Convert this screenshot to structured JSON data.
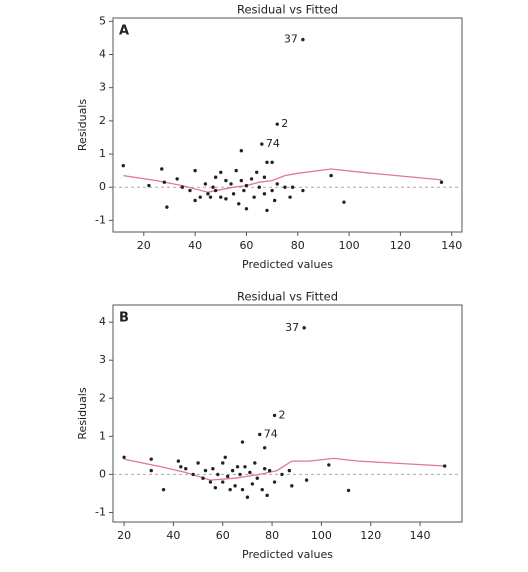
{
  "chart_data": [
    {
      "type": "scatter",
      "title": "Residual vs Fitted",
      "panel_label": "A",
      "x_label": "Predicted values",
      "y_label": "Residuals",
      "xlim": [
        8,
        144
      ],
      "ylim": [
        -1.35,
        5.1
      ],
      "xticks": [
        20,
        40,
        60,
        80,
        100,
        120,
        140
      ],
      "yticks": [
        -1,
        0,
        1,
        2,
        3,
        4,
        5
      ],
      "points": {
        "color": "#222222",
        "x": [
          12,
          22,
          27,
          28,
          29,
          33,
          35,
          38,
          40,
          40,
          42,
          44,
          45,
          46,
          47,
          48,
          48,
          50,
          50,
          52,
          52,
          54,
          55,
          56,
          57,
          58,
          58,
          59,
          60,
          60,
          62,
          63,
          64,
          65,
          66,
          67,
          67,
          68,
          68,
          70,
          70,
          71,
          72,
          72,
          75,
          77,
          78,
          82,
          82,
          93,
          98,
          136
        ],
        "y": [
          0.65,
          0.05,
          0.55,
          0.15,
          -0.6,
          0.25,
          0,
          -0.1,
          0.5,
          -0.4,
          -0.3,
          0.1,
          -0.2,
          -0.3,
          0,
          0.3,
          -0.1,
          0.45,
          -0.3,
          0.2,
          -0.35,
          0.1,
          -0.2,
          0.5,
          -0.5,
          1.1,
          0.2,
          -0.1,
          0.05,
          -0.65,
          0.25,
          -0.3,
          0.45,
          0,
          1.3,
          -0.2,
          0.3,
          0.75,
          -0.7,
          0.75,
          -0.1,
          -0.4,
          1.9,
          0.1,
          0,
          -0.3,
          0,
          4.45,
          -0.1,
          0.35,
          -0.45,
          0.15
        ]
      },
      "smooth": {
        "color": "#e07a8e",
        "x": [
          12,
          25,
          35,
          45,
          55,
          60,
          65,
          70,
          75,
          80,
          93,
          105,
          136
        ],
        "y": [
          0.35,
          0.2,
          0.05,
          -0.15,
          0,
          0.05,
          0.15,
          0.2,
          0.35,
          0.42,
          0.55,
          0.45,
          0.22
        ]
      },
      "annotations": [
        {
          "text": "37",
          "x": 82,
          "y": 4.45,
          "side": "left"
        },
        {
          "text": "2",
          "x": 72,
          "y": 1.9,
          "side": "right"
        },
        {
          "text": "74",
          "x": 66,
          "y": 1.3,
          "side": "right"
        }
      ]
    },
    {
      "type": "scatter",
      "title": "Residual vs Fitted",
      "panel_label": "B",
      "x_label": "Predicted values",
      "y_label": "Residuals",
      "xlim": [
        15.5,
        157
      ],
      "ylim": [
        -1.25,
        4.45
      ],
      "xticks": [
        20,
        40,
        60,
        80,
        100,
        120,
        140
      ],
      "yticks": [
        -1,
        0,
        1,
        2,
        3,
        4
      ],
      "points": {
        "color": "#222222",
        "x": [
          20,
          31,
          31,
          36,
          42,
          43,
          45,
          48,
          50,
          52,
          53,
          55,
          56,
          57,
          58,
          60,
          60,
          61,
          62,
          63,
          64,
          65,
          66,
          67,
          68,
          68,
          69,
          70,
          71,
          72,
          73,
          74,
          75,
          76,
          77,
          77,
          78,
          79,
          81,
          81,
          84,
          87,
          88,
          93,
          94,
          103,
          111,
          150
        ],
        "y": [
          0.45,
          0.4,
          0.1,
          -0.4,
          0.35,
          0.2,
          0.15,
          0,
          0.3,
          -0.1,
          0.1,
          -0.2,
          0.15,
          -0.35,
          0,
          0.3,
          -0.2,
          0.45,
          -0.05,
          -0.4,
          0.1,
          -0.3,
          0.2,
          0,
          0.85,
          -0.4,
          0.2,
          -0.6,
          0.05,
          -0.25,
          0.3,
          -0.1,
          1.05,
          -0.4,
          0.7,
          0.15,
          -0.55,
          0.1,
          1.55,
          -0.2,
          0,
          0.1,
          -0.3,
          3.85,
          -0.15,
          0.25,
          -0.42,
          0.22
        ]
      },
      "smooth": {
        "color": "#e07a8e",
        "x": [
          20,
          35,
          45,
          55,
          65,
          75,
          82,
          88,
          95,
          105,
          115,
          150
        ],
        "y": [
          0.4,
          0.2,
          0.05,
          -0.15,
          -0.1,
          0,
          0.1,
          0.35,
          0.35,
          0.42,
          0.35,
          0.22
        ]
      },
      "annotations": [
        {
          "text": "37",
          "x": 93,
          "y": 3.85,
          "side": "left"
        },
        {
          "text": "2",
          "x": 81,
          "y": 1.55,
          "side": "right"
        },
        {
          "text": "74",
          "x": 75,
          "y": 1.05,
          "side": "right"
        }
      ]
    }
  ]
}
